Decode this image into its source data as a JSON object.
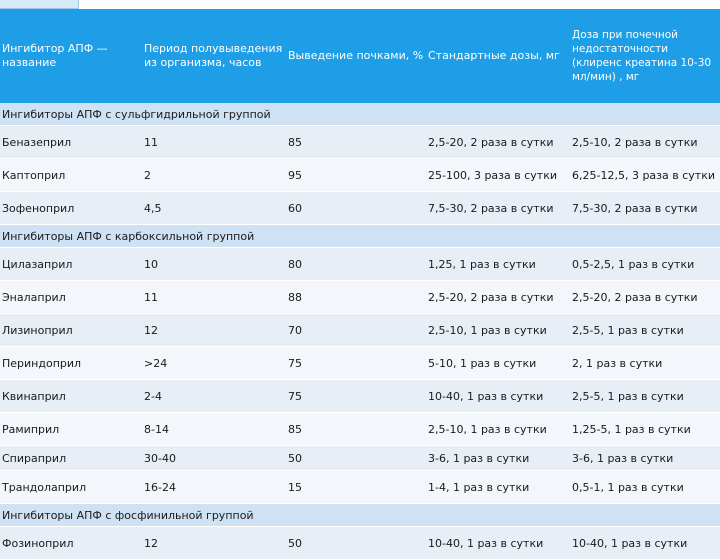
{
  "header": {
    "col1": "Ингибитор АПФ — название",
    "col2": "Период полувыведения из организма, часов",
    "col3": "Выведение почками, %",
    "col4": "Стандартные дозы, мг",
    "col5": "Доза при почечной недостаточности (клиренс креатина 10-30 мл/мин) , мг"
  },
  "groups": {
    "sulfhydryl": "Ингибиторы АПФ с сульфгидрильной группой",
    "carboxyl": "Ингибиторы АПФ с карбоксильной группой",
    "phosphinyl": "Ингибиторы АПФ с фосфинильной группой"
  },
  "rows": [
    [
      "Беназеприл",
      "11",
      "85",
      "2,5-20, 2 раза в сутки",
      "2,5-10, 2 раза в сутки"
    ],
    [
      "Каптоприл",
      "2",
      "95",
      "25-100, 3 раза в сутки",
      "6,25-12,5, 3  раза в сутки"
    ],
    [
      "Зофеноприл",
      "4,5",
      "60",
      "7,5-30, 2 раза в сутки",
      "7,5-30, 2 раза в сутки"
    ],
    [
      "Цилазаприл",
      "10",
      "80",
      "1,25, 1 раз в сутки",
      "0,5-2,5, 1 раз в сутки"
    ],
    [
      "Эналаприл",
      "11",
      "88",
      "2,5-20, 2 раза в сутки",
      "2,5-20, 2 раза в сутки"
    ],
    [
      "Лизиноприл",
      "12",
      "70",
      "2,5-10, 1 раз в сутки",
      "2,5-5, 1 раз в сутки"
    ],
    [
      "Периндоприл",
      ">24",
      "75",
      "5-10, 1 раз в сутки",
      "2, 1 раз в сутки"
    ],
    [
      "Квинаприл",
      "2-4",
      "75",
      "10-40, 1 раз в сутки",
      "2,5-5, 1 раз в сутки"
    ],
    [
      "Рамиприл",
      "8-14",
      "85",
      "2,5-10, 1 раз в сутки",
      "1,25-5, 1 раз в сутки"
    ],
    [
      "Спираприл",
      "30-40",
      "50",
      "3-6, 1 раз в сутки",
      "3-6, 1 раз в сутки"
    ],
    [
      "Трандолаприл",
      "16-24",
      "15",
      "1-4, 1 раз в сутки",
      "0,5-1, 1 раз в сутки"
    ],
    [
      "Фозиноприл",
      "12",
      "50",
      "10-40, 1 раз в сутки",
      "10-40, 1 раз в сутки"
    ]
  ]
}
